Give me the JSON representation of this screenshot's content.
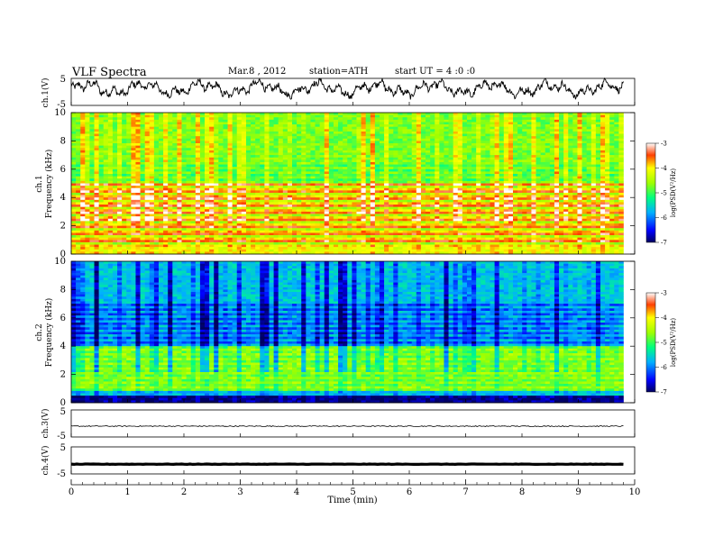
{
  "header": {
    "title": "VLF  Spectra",
    "date": "Mar.8  , 2012",
    "station": "station=ATH",
    "start_ut": "start  UT  =   4  :0  :0"
  },
  "chart_data": [
    {
      "type": "line",
      "panel": "ch1-waveform",
      "ylabel": "ch.1(V)",
      "ylim": [
        -5,
        5
      ],
      "y_ticks": [
        "5",
        "-5"
      ],
      "xlim": [
        0,
        10
      ],
      "data_end_min": 9.8
    },
    {
      "type": "heatmap",
      "panel": "ch1-spectrogram",
      "ylabel_channel": "ch.1",
      "ylabel": "Frequency  (kHz)",
      "ylim": [
        0,
        10
      ],
      "y_ticks": [
        "0",
        "2",
        "4",
        "6",
        "8",
        "10"
      ],
      "xlim": [
        0,
        10
      ],
      "data_end_min": 9.8,
      "colorbar": {
        "label": "log(PSD(V²/Hz)",
        "range": [
          -7,
          -3
        ],
        "ticks": [
          "-3",
          "-4",
          "-5",
          "-6",
          "-7"
        ]
      }
    },
    {
      "type": "heatmap",
      "panel": "ch2-spectrogram",
      "ylabel_channel": "ch.2",
      "ylabel": "Frequency  (kHz)",
      "ylim": [
        0,
        10
      ],
      "y_ticks": [
        "0",
        "2",
        "4",
        "6",
        "8",
        "10"
      ],
      "xlim": [
        0,
        10
      ],
      "data_end_min": 9.8,
      "colorbar": {
        "label": "log(PSD(V²/Hz)",
        "range": [
          -7,
          -3
        ],
        "ticks": [
          "-3",
          "-4",
          "-5",
          "-6",
          "-7"
        ]
      }
    },
    {
      "type": "line",
      "panel": "ch3-waveform",
      "ylabel": "ch.3(V)",
      "ylim": [
        -5,
        5
      ],
      "y_ticks": [
        "5",
        "-5"
      ],
      "xlim": [
        0,
        10
      ],
      "data_end_min": 9.8
    },
    {
      "type": "line",
      "panel": "ch4-waveform",
      "ylabel": "ch.4(V)",
      "ylim": [
        -5,
        5
      ],
      "y_ticks": [
        "5",
        "-5"
      ],
      "xlim": [
        0,
        10
      ],
      "data_end_min": 9.8
    }
  ],
  "x_axis": {
    "label": "Time  (min)",
    "ticks": [
      "0",
      "1",
      "2",
      "3",
      "4",
      "5",
      "6",
      "7",
      "8",
      "9",
      "10"
    ]
  }
}
